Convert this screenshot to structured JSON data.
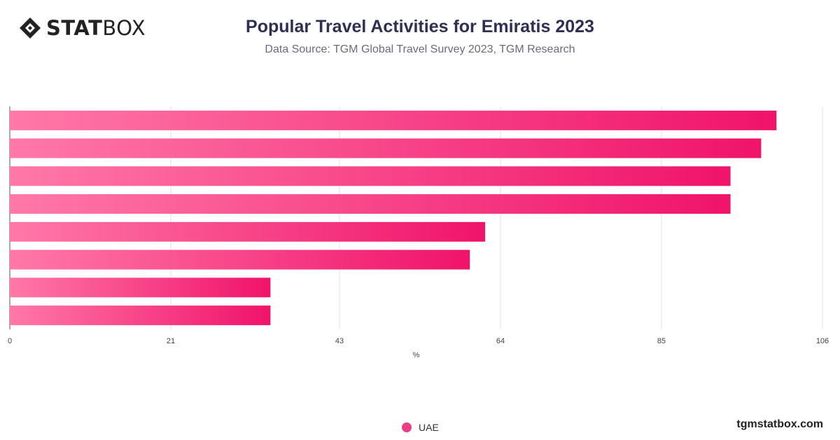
{
  "header": {
    "logo_bold": "STAT",
    "logo_light": "BOX",
    "title": "Popular Travel Activities for Emiratis 2023",
    "subtitle": "Data Source: TGM Global Travel Survey 2023, TGM Research"
  },
  "legend": {
    "label": "UAE",
    "color": "#ec3e85"
  },
  "footer": {
    "brand": "tgmstatbox.com"
  },
  "chart_data": {
    "type": "bar",
    "orientation": "horizontal",
    "title": "Popular Travel Activities for Emiratis 2023",
    "xlabel": "%",
    "ylabel": "",
    "xlim": [
      0,
      106
    ],
    "xticks": [
      0,
      21,
      43,
      64,
      85,
      106
    ],
    "categories": [
      "",
      "",
      "",
      "",
      "",
      "",
      "",
      ""
    ],
    "series": [
      {
        "name": "UAE",
        "values": [
          100,
          98,
          94,
          94,
          62,
          60,
          34,
          34
        ]
      }
    ],
    "grid": true,
    "legend_position": "bottom",
    "colors": {
      "gradient_start": "#ff78a8",
      "gradient_end": "#f0136a",
      "grid": "#e2e2e2",
      "axis": "#555555"
    }
  }
}
